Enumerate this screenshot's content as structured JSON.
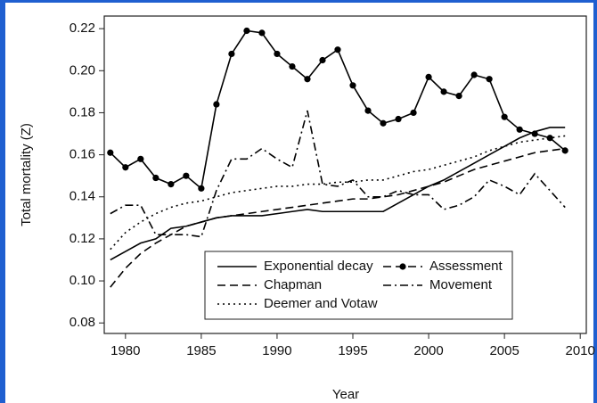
{
  "chart_data": {
    "type": "line",
    "xlabel": "Year",
    "ylabel": "Total mortality (Z)",
    "x": [
      1979,
      1980,
      1981,
      1982,
      1983,
      1984,
      1985,
      1986,
      1987,
      1988,
      1989,
      1990,
      1991,
      1992,
      1993,
      1994,
      1995,
      1996,
      1997,
      1998,
      1999,
      2000,
      2001,
      2002,
      2003,
      2004,
      2005,
      2006,
      2007,
      2008,
      2009
    ],
    "series": [
      {
        "name": "Exponential decay",
        "color": "#000000",
        "style": "solid",
        "values": [
          0.11,
          0.114,
          0.118,
          0.12,
          0.125,
          0.126,
          0.128,
          0.13,
          0.131,
          0.131,
          0.131,
          0.132,
          0.133,
          0.134,
          0.133,
          0.133,
          0.133,
          0.133,
          0.133,
          0.137,
          0.141,
          0.145,
          0.148,
          0.152,
          0.156,
          0.16,
          0.164,
          0.168,
          0.171,
          0.173,
          0.173
        ]
      },
      {
        "name": "Chapman",
        "color": "#000000",
        "style": "dashed",
        "values": [
          0.097,
          0.106,
          0.113,
          0.118,
          0.122,
          0.126,
          0.128,
          0.13,
          0.131,
          0.132,
          0.133,
          0.134,
          0.135,
          0.136,
          0.137,
          0.138,
          0.139,
          0.139,
          0.14,
          0.141,
          0.143,
          0.145,
          0.147,
          0.15,
          0.153,
          0.155,
          0.157,
          0.159,
          0.161,
          0.162,
          0.163
        ]
      },
      {
        "name": "Deemer and Votaw",
        "color": "#000000",
        "style": "dotted",
        "values": [
          0.115,
          0.123,
          0.128,
          0.132,
          0.135,
          0.137,
          0.138,
          0.14,
          0.142,
          0.143,
          0.144,
          0.145,
          0.145,
          0.146,
          0.146,
          0.147,
          0.147,
          0.148,
          0.148,
          0.15,
          0.152,
          0.153,
          0.155,
          0.157,
          0.159,
          0.162,
          0.164,
          0.166,
          0.167,
          0.168,
          0.169
        ]
      },
      {
        "name": "Assessment",
        "color": "#000000",
        "style": "dashed",
        "marker": "circle",
        "values": [
          0.161,
          0.154,
          0.158,
          0.149,
          0.146,
          0.15,
          0.144,
          0.184,
          0.208,
          0.219,
          0.218,
          0.208,
          0.202,
          0.196,
          0.205,
          0.21,
          0.193,
          0.181,
          0.175,
          0.177,
          0.18,
          0.197,
          0.19,
          0.188,
          0.198,
          0.196,
          0.178,
          0.172,
          0.17,
          0.168,
          0.162
        ]
      },
      {
        "name": "Movement",
        "color": "#000000",
        "style": "dashdot",
        "values": [
          0.132,
          0.136,
          0.136,
          0.122,
          0.122,
          0.122,
          0.121,
          0.143,
          0.158,
          0.158,
          0.163,
          0.158,
          0.154,
          0.181,
          0.146,
          0.145,
          0.148,
          0.14,
          0.14,
          0.143,
          0.141,
          0.141,
          0.134,
          0.136,
          0.14,
          0.148,
          0.145,
          0.141,
          0.151,
          0.143,
          0.135
        ]
      }
    ],
    "xlim": [
      1978.6,
      2010.4
    ],
    "ylim": [
      0.075,
      0.226
    ],
    "xticks": [
      1980,
      1985,
      1990,
      1995,
      2000,
      2005,
      2010
    ],
    "yticks": [
      0.08,
      {
        "value": 0.1,
        "label": "0.10"
      },
      0.12,
      0.14,
      0.16,
      0.18,
      {
        "value": 0.2,
        "label": "0.20"
      },
      0.22
    ],
    "legend": "bottom-right"
  }
}
